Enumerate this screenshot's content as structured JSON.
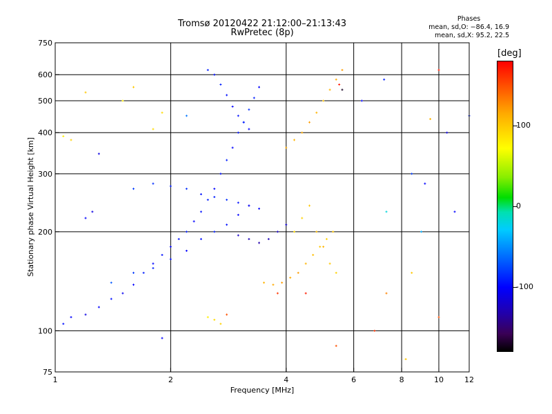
{
  "header": {
    "title_line1": "Tromsø 20120422 21:12:00–21:13:43",
    "title_line2": "RwPretec (8p)"
  },
  "phases_box": {
    "heading": "Phases",
    "line_o": "mean, sd,O: −86.4, 16.9",
    "line_x": "mean, sd,X:  95.2, 22.5"
  },
  "colorbar": {
    "title": "[deg]",
    "range": [
      -180,
      180
    ],
    "ticks": [
      {
        "value": 100,
        "label": "100"
      },
      {
        "value": 0,
        "label": "0"
      },
      {
        "value": -100,
        "label": "-100"
      }
    ]
  },
  "chart_data": {
    "type": "scatter",
    "xlabel": "Frequency [MHz]",
    "ylabel": "Stationary phase Virtual Height [km]",
    "xscale": "log",
    "yscale": "log",
    "xlim": [
      1,
      12
    ],
    "ylim": [
      75,
      750
    ],
    "xticks": [
      {
        "value": 1,
        "label": "1"
      },
      {
        "value": 2,
        "label": "2"
      },
      {
        "value": 4,
        "label": "4"
      },
      {
        "value": 6,
        "label": "6"
      },
      {
        "value": 8,
        "label": "8"
      },
      {
        "value": 10,
        "label": "10"
      },
      {
        "value": 12,
        "label": "12"
      }
    ],
    "yticks": [
      {
        "value": 75,
        "label": "75"
      },
      {
        "value": 100,
        "label": "100"
      },
      {
        "value": 200,
        "label": "200"
      },
      {
        "value": 300,
        "label": "300"
      },
      {
        "value": 400,
        "label": "400"
      },
      {
        "value": 500,
        "label": "500"
      },
      {
        "value": 600,
        "label": "600"
      },
      {
        "value": 750,
        "label": "750"
      }
    ],
    "x_gridlines": [
      2,
      4,
      6,
      8,
      10
    ],
    "y_gridlines": [
      100,
      200,
      300,
      400,
      500,
      600
    ],
    "grid": true,
    "color_encoding": "phase [deg]",
    "series": [
      {
        "points": [
          [
            1.05,
            105,
            -95
          ],
          [
            1.1,
            110,
            -100
          ],
          [
            1.2,
            112,
            -110
          ],
          [
            1.3,
            118,
            -100
          ],
          [
            1.4,
            125,
            -95
          ],
          [
            1.5,
            130,
            -105
          ],
          [
            1.6,
            138,
            -100
          ],
          [
            1.7,
            150,
            -90
          ],
          [
            1.8,
            160,
            -100
          ],
          [
            1.9,
            170,
            -95
          ],
          [
            2.0,
            180,
            -100
          ],
          [
            2.1,
            190,
            -95
          ],
          [
            2.2,
            200,
            -90
          ],
          [
            2.3,
            215,
            -100
          ],
          [
            2.4,
            230,
            -95
          ],
          [
            2.5,
            250,
            -90
          ],
          [
            2.6,
            270,
            -100
          ],
          [
            2.7,
            300,
            -95
          ],
          [
            2.8,
            330,
            -90
          ],
          [
            2.9,
            360,
            -100
          ],
          [
            3.0,
            400,
            -95
          ],
          [
            3.1,
            430,
            -90
          ],
          [
            3.2,
            470,
            -85
          ],
          [
            3.3,
            510,
            -90
          ],
          [
            3.4,
            550,
            -100
          ]
        ]
      },
      {
        "points": [
          [
            1.6,
            270,
            -80
          ],
          [
            1.8,
            280,
            -85
          ],
          [
            2.0,
            275,
            -90
          ],
          [
            2.2,
            270,
            -85
          ],
          [
            2.4,
            260,
            -95
          ],
          [
            2.6,
            255,
            -90
          ],
          [
            2.8,
            250,
            -85
          ],
          [
            3.0,
            245,
            -95
          ],
          [
            3.2,
            240,
            -100
          ],
          [
            3.4,
            235,
            -100
          ]
        ]
      },
      {
        "points": [
          [
            2.5,
            620,
            -90
          ],
          [
            2.6,
            600,
            -95
          ],
          [
            2.7,
            560,
            -90
          ],
          [
            2.8,
            520,
            -95
          ],
          [
            2.9,
            480,
            -100
          ],
          [
            3.0,
            450,
            -95
          ],
          [
            3.1,
            430,
            -90
          ],
          [
            3.2,
            410,
            -100
          ]
        ]
      },
      {
        "points": [
          [
            1.4,
            140,
            -70
          ],
          [
            1.6,
            150,
            -80
          ],
          [
            1.8,
            155,
            -90
          ],
          [
            2.0,
            165,
            -95
          ],
          [
            2.2,
            175,
            -100
          ],
          [
            2.4,
            190,
            -95
          ],
          [
            2.6,
            200,
            -90
          ],
          [
            2.8,
            210,
            -95
          ],
          [
            3.0,
            225,
            -100
          ],
          [
            3.2,
            240,
            -105
          ]
        ]
      },
      {
        "points": [
          [
            3.0,
            195,
            -120
          ],
          [
            3.2,
            190,
            -125
          ],
          [
            3.4,
            185,
            -130
          ],
          [
            3.6,
            190,
            -125
          ],
          [
            3.8,
            200,
            -120
          ],
          [
            4.0,
            210,
            -115
          ]
        ]
      },
      {
        "points": [
          [
            3.5,
            140,
            110
          ],
          [
            3.7,
            138,
            115
          ],
          [
            3.9,
            140,
            120
          ],
          [
            4.1,
            145,
            115
          ],
          [
            4.3,
            150,
            120
          ],
          [
            4.5,
            160,
            110
          ],
          [
            4.7,
            170,
            105
          ],
          [
            4.9,
            180,
            100
          ],
          [
            5.1,
            190,
            95
          ],
          [
            5.3,
            200,
            100
          ]
        ]
      },
      {
        "points": [
          [
            4.0,
            360,
            115
          ],
          [
            4.2,
            380,
            110
          ],
          [
            4.4,
            400,
            115
          ],
          [
            4.6,
            430,
            120
          ],
          [
            4.8,
            460,
            110
          ],
          [
            5.0,
            500,
            105
          ],
          [
            5.2,
            540,
            110
          ],
          [
            5.4,
            580,
            115
          ],
          [
            5.6,
            620,
            120
          ]
        ]
      },
      {
        "points": [
          [
            4.2,
            200,
            90
          ],
          [
            4.4,
            220,
            95
          ],
          [
            4.6,
            240,
            100
          ],
          [
            4.8,
            200,
            105
          ],
          [
            5.0,
            180,
            110
          ],
          [
            5.2,
            160,
            100
          ],
          [
            5.4,
            150,
            95
          ]
        ]
      },
      {
        "points": [
          [
            2.5,
            110,
            80
          ],
          [
            2.6,
            108,
            90
          ],
          [
            2.7,
            105,
            95
          ],
          [
            2.8,
            112,
            150
          ],
          [
            3.8,
            130,
            160
          ],
          [
            4.5,
            130,
            170
          ],
          [
            5.5,
            560,
            170
          ],
          [
            5.6,
            540,
            -170
          ],
          [
            10,
            620,
            170
          ],
          [
            10,
            110,
            150
          ],
          [
            8.2,
            82,
            100
          ],
          [
            5.4,
            90,
            150
          ],
          [
            6.8,
            100,
            160
          ],
          [
            1.5,
            500,
            80
          ],
          [
            1.9,
            460,
            90
          ],
          [
            8.5,
            150,
            100
          ],
          [
            9.5,
            440,
            110
          ],
          [
            7.3,
            130,
            130
          ]
        ]
      },
      {
        "points": [
          [
            1.05,
            390,
            80
          ],
          [
            1.1,
            380,
            95
          ],
          [
            1.2,
            530,
            100
          ],
          [
            1.6,
            550,
            100
          ],
          [
            1.8,
            410,
            90
          ],
          [
            2.2,
            450,
            -60
          ],
          [
            6.3,
            500,
            -100
          ],
          [
            7.2,
            580,
            -90
          ],
          [
            8.5,
            300,
            -80
          ],
          [
            9.2,
            280,
            -100
          ],
          [
            10.5,
            400,
            -110
          ],
          [
            11,
            230,
            -100
          ],
          [
            12,
            450,
            -90
          ],
          [
            7.3,
            230,
            -20
          ],
          [
            9.0,
            200,
            -40
          ],
          [
            1.3,
            345,
            -110
          ],
          [
            1.9,
            95,
            -100
          ],
          [
            1.2,
            220,
            -100
          ],
          [
            1.25,
            230,
            -110
          ]
        ]
      }
    ]
  }
}
